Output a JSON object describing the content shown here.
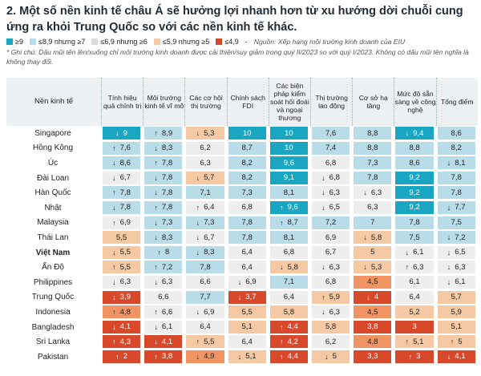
{
  "title": "2. Một số nền kinh tế châu Á sẽ hưởng lợi nhanh hơn từ xu hướng dời chuỗi cung ứng ra khỏi Trung Quốc so với các nền kinh tế khác.",
  "legend": [
    {
      "label": "≥9",
      "color": "#19a6c2"
    },
    {
      "label": "≤8,9 nhưng ≥7",
      "color": "#b8dde9"
    },
    {
      "label": "≤6,9 nhưng ≥6",
      "color": "#eeeeee"
    },
    {
      "label": "≤5,9 nhưng ≥5",
      "color": "#f4c9a4"
    },
    {
      "label": "≤4,9",
      "color": "#d8492c"
    }
  ],
  "source": "Nguồn: Xếp hạng môi trường kinh doanh của EIU",
  "note": "* Ghi chú: Dấu mũi tên lên/xuống chỉ môi trường kinh doanh được cải thiện/suy giảm trong quý II/2023 so với quý I/2023. Không có dấu mũi tên nghĩa là không thay đổi.",
  "chart_data": {
    "type": "table",
    "row_header": "Nền kinh tế",
    "columns": [
      "Tính hiệu quả chính trị",
      "Môi trường kinh tế vĩ mô",
      "Các cơ hội thị trường",
      "Chính sách FDI",
      "Các biện pháp kiểm soát hối đoái và ngoại thương",
      "Thị trường lao động",
      "Cơ sở hạ tầng",
      "Mức độ sẵn sàng về công nghệ",
      "Tổng điểm"
    ],
    "rows": [
      {
        "name": "Singapore",
        "bold": false,
        "values": [
          "9",
          "8,9",
          "5,3",
          "10",
          "10",
          "7,6",
          "8,8",
          "9,4",
          "8,6"
        ],
        "arrows": [
          "down",
          "up",
          "down",
          "",
          "",
          "",
          "",
          "down",
          ""
        ]
      },
      {
        "name": "Hồng Kông",
        "bold": false,
        "values": [
          "7,6",
          "8,3",
          "6,2",
          "8,7",
          "10",
          "7,4",
          "8,8",
          "8,8",
          "8,2"
        ],
        "arrows": [
          "up",
          "down",
          "",
          "",
          "",
          "",
          "",
          "",
          ""
        ]
      },
      {
        "name": "Úc",
        "bold": false,
        "values": [
          "8,6",
          "7,8",
          "6,3",
          "8,2",
          "9,6",
          "6,8",
          "7,3",
          "8,6",
          "8,1"
        ],
        "arrows": [
          "down",
          "up",
          "",
          "",
          "",
          "",
          "",
          "",
          "down"
        ]
      },
      {
        "name": "Đài Loan",
        "bold": false,
        "values": [
          "6,7",
          "7,8",
          "5,7",
          "8,2",
          "9,1",
          "6,8",
          "7,8",
          "9,2",
          "7,8"
        ],
        "arrows": [
          "down",
          "down",
          "down",
          "",
          "",
          "down",
          "",
          "",
          ""
        ]
      },
      {
        "name": "Hàn Quốc",
        "bold": false,
        "values": [
          "7,8",
          "7,8",
          "7,1",
          "7,3",
          "8,1",
          "6,3",
          "6,3",
          "9,2",
          "7,8"
        ],
        "arrows": [
          "up",
          "down",
          "",
          "",
          "",
          "down",
          "down",
          "",
          ""
        ]
      },
      {
        "name": "Nhật",
        "bold": false,
        "values": [
          "7,8",
          "7,8",
          "6,4",
          "6,8",
          "9,6",
          "6,5",
          "6,3",
          "9,2",
          "7,7"
        ],
        "arrows": [
          "down",
          "up",
          "up",
          "",
          "up",
          "down",
          "",
          "",
          "down"
        ]
      },
      {
        "name": "Malaysia",
        "bold": false,
        "values": [
          "6,9",
          "7,3",
          "7,3",
          "7,8",
          "8,7",
          "7,2",
          "7",
          "7,8",
          "7,5"
        ],
        "arrows": [
          "up",
          "down",
          "down",
          "",
          "up",
          "",
          "",
          "",
          ""
        ]
      },
      {
        "name": "Thái Lan",
        "bold": false,
        "values": [
          "5,5",
          "8,3",
          "6,7",
          "7,8",
          "8,1",
          "6,9",
          "5,8",
          "7,5",
          "7,2"
        ],
        "arrows": [
          "",
          "down",
          "down",
          "",
          "",
          "",
          "down",
          "",
          "down"
        ]
      },
      {
        "name": "Việt Nam",
        "bold": true,
        "values": [
          "5,5",
          "8",
          "8,3",
          "6,4",
          "6,8",
          "6,7",
          "5",
          "6,1",
          "6,5"
        ],
        "arrows": [
          "down",
          "up",
          "down",
          "",
          "",
          "",
          "",
          "down",
          "down"
        ]
      },
      {
        "name": "Ấn Độ",
        "bold": false,
        "values": [
          "5,5",
          "7,2",
          "7,8",
          "6,4",
          "5,8",
          "6,3",
          "5,3",
          "6,3",
          "6,3"
        ],
        "arrows": [
          "up",
          "up",
          "",
          "",
          "down",
          "down",
          "down",
          "up",
          "down"
        ]
      },
      {
        "name": "Philippines",
        "bold": false,
        "values": [
          "6,3",
          "6,3",
          "6,6",
          "6,9",
          "7,1",
          "6,8",
          "4,5",
          "6,1",
          "6,1"
        ],
        "arrows": [
          "down",
          "down",
          "",
          "down",
          "",
          "",
          "",
          "",
          "down"
        ]
      },
      {
        "name": "Trung Quốc",
        "bold": false,
        "values": [
          "3,9",
          "6,6",
          "7,7",
          "3,7",
          "6,4",
          "5,9",
          "4",
          "6,4",
          "5,7"
        ],
        "arrows": [
          "down",
          "",
          "",
          "down",
          "",
          "up",
          "down",
          "",
          ""
        ]
      },
      {
        "name": "Indonesia",
        "bold": false,
        "values": [
          "4,8",
          "6,6",
          "6,9",
          "5,5",
          "5,8",
          "6,3",
          "4,5",
          "5,2",
          "5,9"
        ],
        "arrows": [
          "up",
          "up",
          "down",
          "",
          "",
          "down",
          "",
          "",
          ""
        ]
      },
      {
        "name": "Bangladesh",
        "bold": false,
        "values": [
          "4,1",
          "6,1",
          "6,4",
          "5,1",
          "4,4",
          "5,8",
          "3,8",
          "3",
          "5,1"
        ],
        "arrows": [
          "down",
          "down",
          "",
          "",
          "up",
          "",
          "",
          "",
          ""
        ]
      },
      {
        "name": "Sri Lanka",
        "bold": false,
        "values": [
          "4,3",
          "4,1",
          "5,5",
          "6,4",
          "4,2",
          "6,2",
          "4,8",
          "5,1",
          "5"
        ],
        "arrows": [
          "up",
          "down",
          "up",
          "",
          "up",
          "",
          "",
          "up",
          "up"
        ]
      },
      {
        "name": "Pakistan",
        "bold": false,
        "values": [
          "2",
          "3,8",
          "4,9",
          "5,1",
          "4,4",
          "5",
          "3,3",
          "3",
          "4,1"
        ],
        "arrows": [
          "up",
          "up",
          "down",
          "down",
          "up",
          "down",
          "",
          "up",
          "down"
        ]
      }
    ]
  }
}
